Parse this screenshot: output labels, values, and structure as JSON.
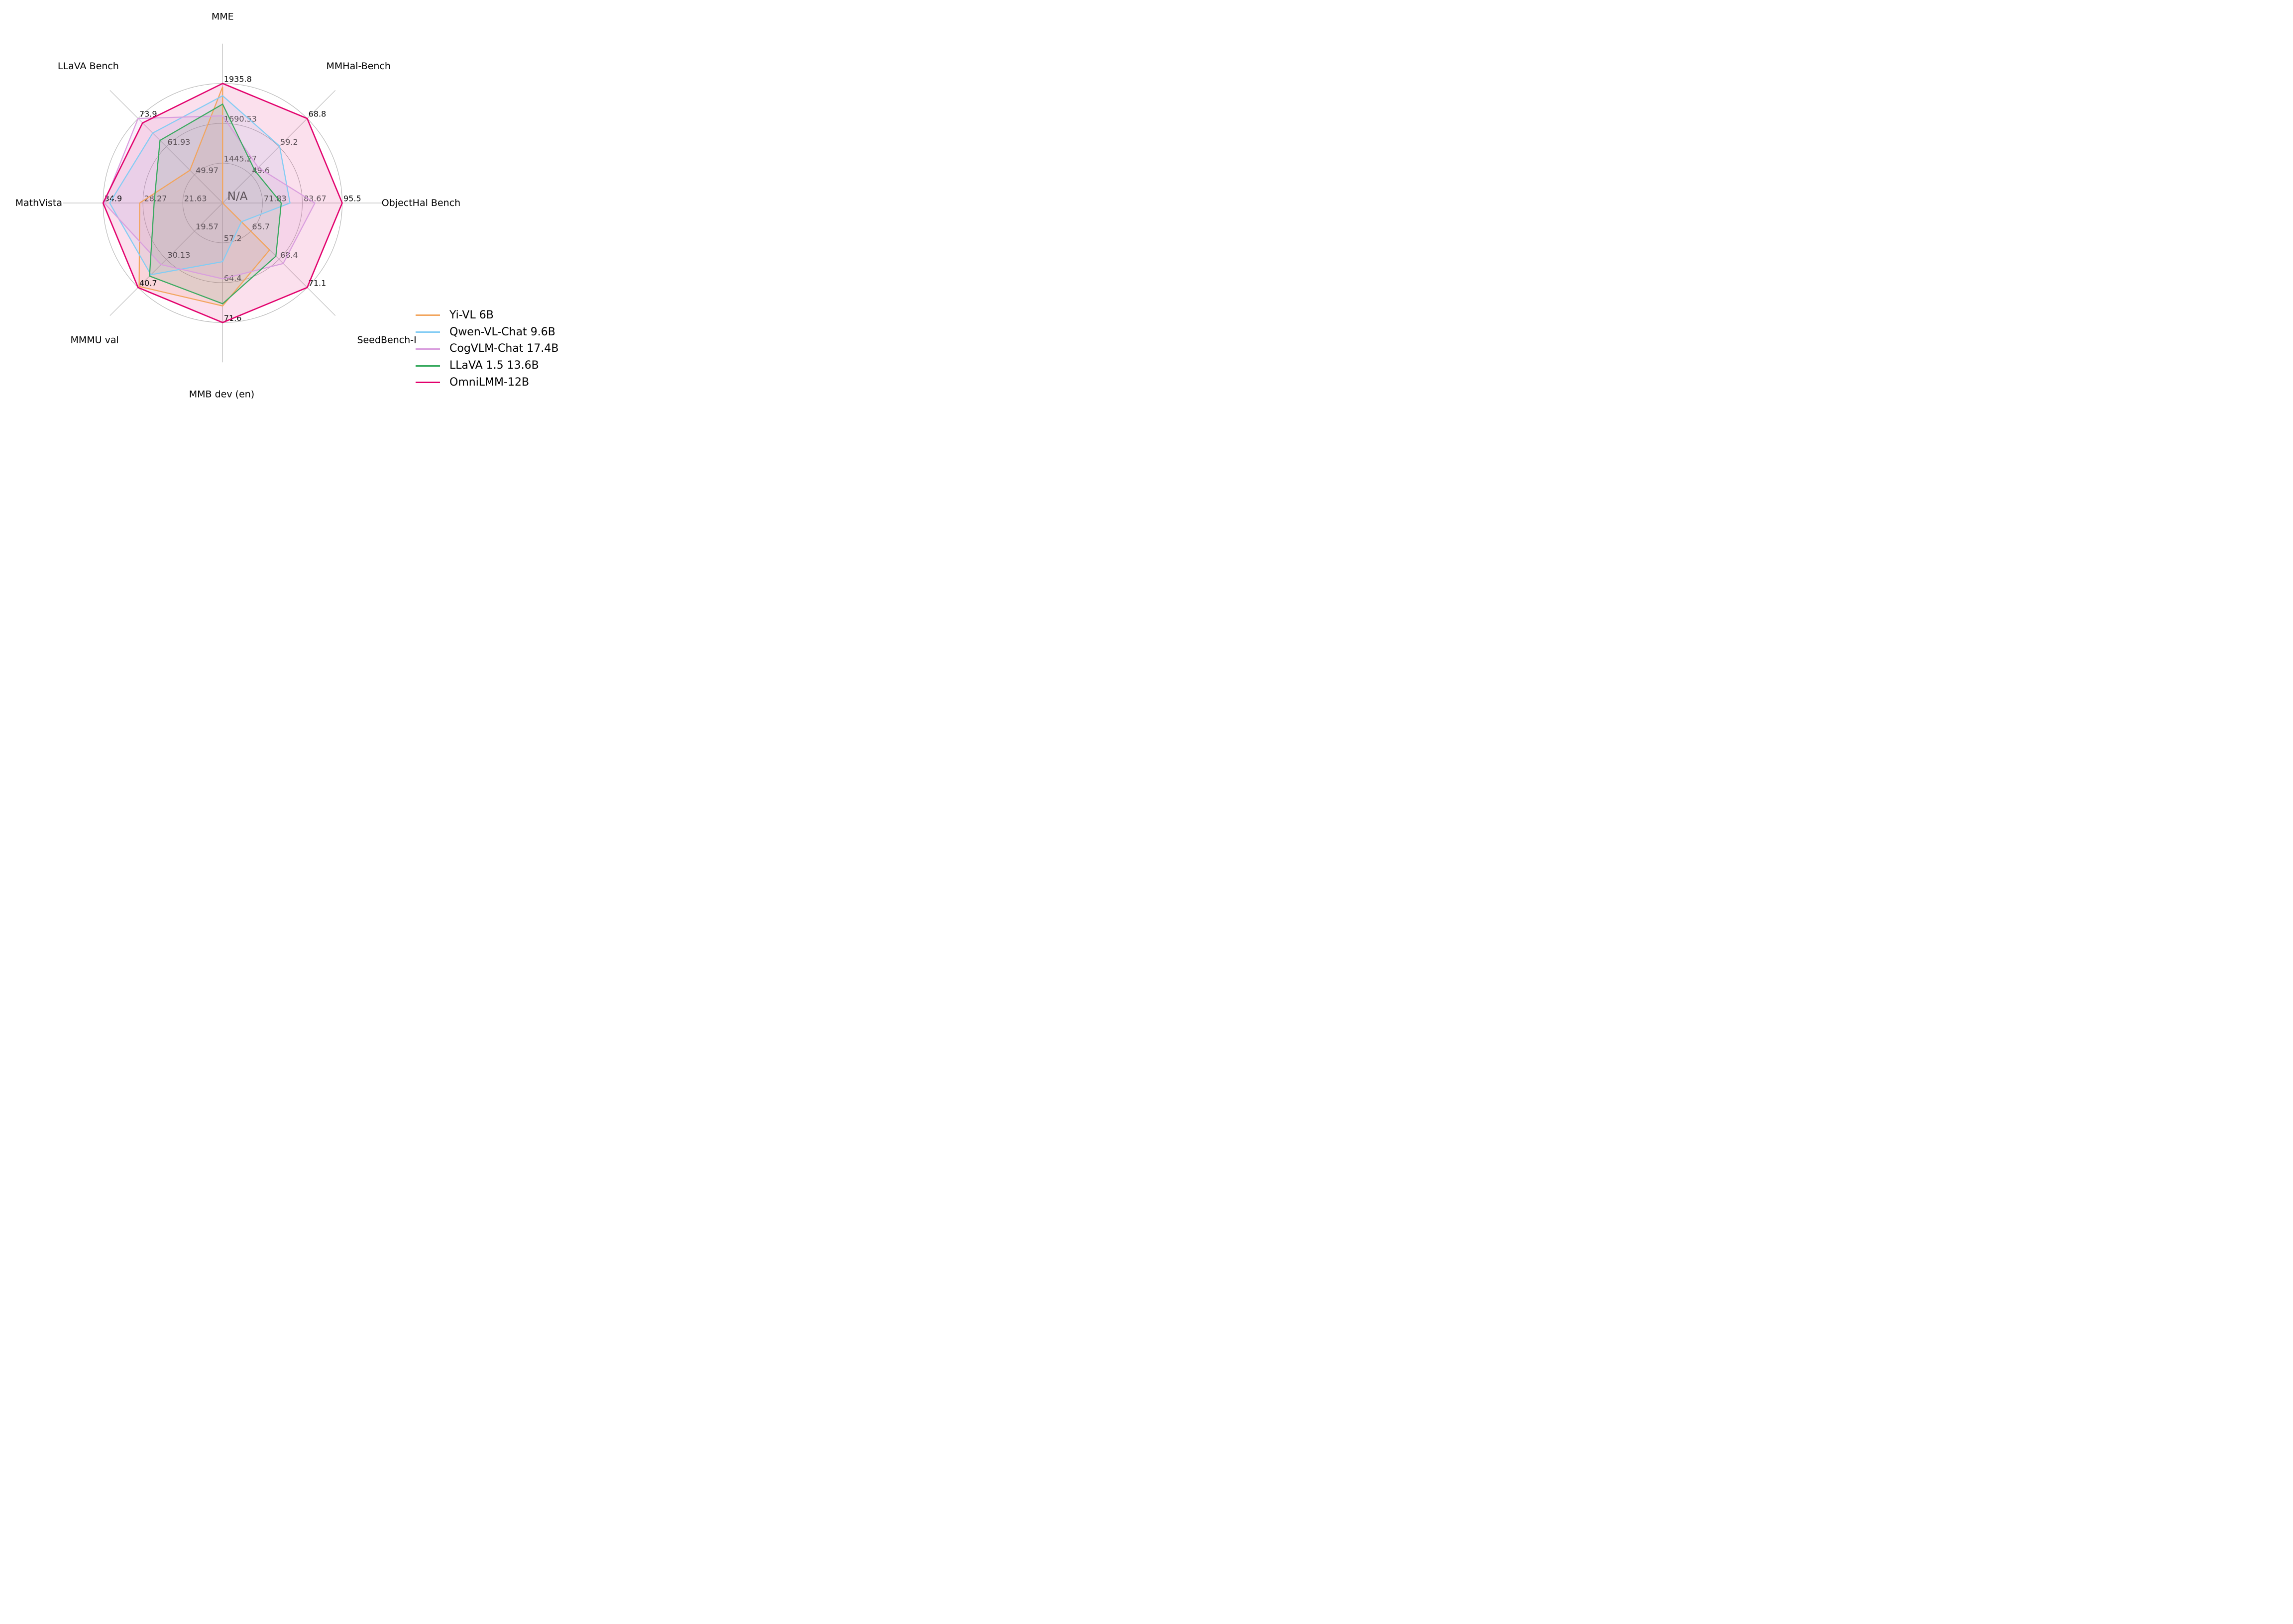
{
  "chart_data": {
    "type": "radar",
    "title": "",
    "center_label": "N/A",
    "grid": {
      "rings": 3,
      "spoke_extension": 1.333,
      "color": "#ACACAC"
    },
    "legend_position": "lower right",
    "axes": [
      {
        "label": "MME",
        "min": 1200,
        "max": 1935.8,
        "tick_labels": [
          "1445.27",
          "1690.53",
          "1935.8"
        ]
      },
      {
        "label": "MMHal-Bench",
        "min": 40,
        "max": 68.8,
        "tick_labels": [
          "49.6",
          "59.2",
          "68.8"
        ]
      },
      {
        "label": "ObjectHal Bench",
        "min": 60,
        "max": 95.5,
        "tick_labels": [
          "71.83",
          "83.67",
          "95.5"
        ]
      },
      {
        "label": "SeedBench-I",
        "min": 63,
        "max": 71.1,
        "tick_labels": [
          "65.7",
          "68.4",
          "71.1"
        ]
      },
      {
        "label": "MMB dev (en)",
        "min": 50,
        "max": 71.6,
        "tick_labels": [
          "57.2",
          "64.4",
          "71.6"
        ]
      },
      {
        "label": "MMMU val",
        "min": 9,
        "max": 40.7,
        "tick_labels": [
          "19.57",
          "30.13",
          "40.7"
        ]
      },
      {
        "label": "MathVista",
        "min": 15,
        "max": 34.9,
        "tick_labels": [
          "21.63",
          "28.27",
          "34.9"
        ]
      },
      {
        "label": "LLaVA Bench",
        "min": 38,
        "max": 73.9,
        "tick_labels": [
          "49.97",
          "61.93",
          "73.9"
        ]
      }
    ],
    "series": [
      {
        "name": "Yi-VL 6B",
        "color": "#F2A45C",
        "values": [
          1915.1,
          null,
          null,
          67.5,
          68.6,
          40.3,
          28.8,
          51.9
        ]
      },
      {
        "name": "Qwen-VL-Chat 9.6B",
        "color": "#82CCF4",
        "values": [
          1860.0,
          59.4,
          80.0,
          64.8,
          60.6,
          35.9,
          33.8,
          67.7
        ]
      },
      {
        "name": "CogVLM-Chat 17.4B",
        "color": "#D99EDE",
        "values": [
          1736.6,
          52.1,
          87.4,
          68.8,
          63.7,
          32.1,
          34.7,
          73.9
        ]
      },
      {
        "name": "LLaVA 1.5 13.6B",
        "color": "#37A95E",
        "values": [
          1808.4,
          51.0,
          77.4,
          68.1,
          68.2,
          36.4,
          26.4,
          64.6
        ]
      },
      {
        "name": "OmniLMM-12B",
        "color": "#E2006C",
        "values": [
          1935.8,
          68.8,
          95.5,
          71.1,
          71.6,
          40.7,
          34.9,
          72.0
        ]
      }
    ],
    "tick_label_colors": {
      "inner": "#5A4F56",
      "outer": "#0B0B0B"
    },
    "axis_label_color": "#000000"
  }
}
